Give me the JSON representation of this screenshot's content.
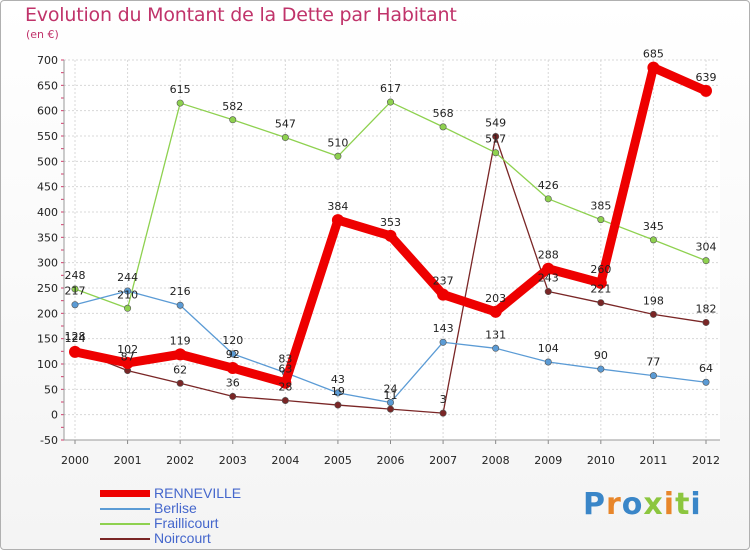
{
  "chart_data": {
    "type": "line",
    "title": "Evolution du Montant de la Dette par Habitant",
    "subtitle": "(en €)",
    "x": [
      "2000",
      "2001",
      "2002",
      "2003",
      "2004",
      "2005",
      "2006",
      "2007",
      "2008",
      "2009",
      "2010",
      "2011",
      "2012"
    ],
    "ylim": [
      -50,
      700
    ],
    "yticks": [
      -50,
      0,
      50,
      100,
      150,
      200,
      250,
      300,
      350,
      400,
      450,
      500,
      550,
      600,
      650,
      700
    ],
    "grid": true,
    "legend_position": "bottom-left",
    "series": [
      {
        "name": "RENNEVILLE",
        "color": "#ee0000",
        "values": [
          124,
          102,
          119,
          92,
          63,
          384,
          353,
          237,
          203,
          288,
          260,
          685,
          639
        ],
        "labels": [
          "124",
          "102",
          "119",
          "92",
          "63",
          "384",
          "353",
          "237",
          "203",
          "288",
          "260",
          "685",
          "639"
        ]
      },
      {
        "name": "Berlise",
        "color": "#5b9bd5",
        "values": [
          217,
          244,
          216,
          120,
          83,
          43,
          24,
          143,
          131,
          104,
          90,
          77,
          64
        ],
        "labels": [
          "217",
          "244",
          "216",
          "120",
          "83",
          "43",
          "24",
          "143",
          "131",
          "104",
          "90",
          "77",
          "64"
        ]
      },
      {
        "name": "Fraillicourt",
        "color": "#8ed14f",
        "values": [
          248,
          210,
          615,
          582,
          547,
          510,
          617,
          568,
          517,
          426,
          385,
          345,
          304
        ],
        "labels": [
          "248",
          "210",
          "615",
          "582",
          "547",
          "510",
          "617",
          "568",
          "517",
          "426",
          "385",
          "345",
          "304"
        ]
      },
      {
        "name": "Noircourt",
        "color": "#7a2626",
        "values": [
          128,
          87,
          62,
          36,
          28,
          19,
          11,
          3,
          549,
          243,
          221,
          198,
          182
        ],
        "labels": [
          "128",
          "87",
          "62",
          "36",
          "28",
          "19",
          "11",
          "3",
          "549",
          "243",
          "221",
          "198",
          "182"
        ]
      }
    ]
  },
  "brand": {
    "text": "Proxiti"
  }
}
